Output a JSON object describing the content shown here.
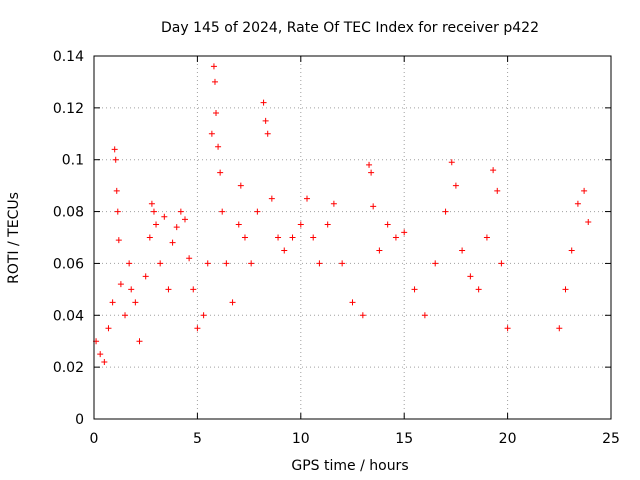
{
  "chart_data": {
    "type": "scatter",
    "title": "Day 145 of 2024, Rate Of TEC Index for receiver p422",
    "xlabel": "GPS time / hours",
    "ylabel": "ROTI / TECUs",
    "xlim": [
      0,
      25
    ],
    "ylim": [
      0,
      0.14
    ],
    "xticks": [
      0,
      5,
      10,
      15,
      20,
      25
    ],
    "xtick_labels": [
      "0",
      "5",
      "10",
      "15",
      "20",
      "25"
    ],
    "yticks": [
      0,
      0.02,
      0.04,
      0.06,
      0.08,
      0.1,
      0.12,
      0.14
    ],
    "ytick_labels": [
      "0",
      "0.02",
      "0.04",
      "0.06",
      "0.08",
      "0.1",
      "0.12",
      "0.14"
    ],
    "grid": true,
    "marker": "+",
    "marker_color": "#ff0000",
    "series": [
      {
        "name": "ROTI",
        "points": [
          [
            0.1,
            0.03
          ],
          [
            0.3,
            0.025
          ],
          [
            0.5,
            0.022
          ],
          [
            0.7,
            0.035
          ],
          [
            0.9,
            0.045
          ],
          [
            1.0,
            0.104
          ],
          [
            1.05,
            0.1
          ],
          [
            1.1,
            0.088
          ],
          [
            1.15,
            0.08
          ],
          [
            1.2,
            0.069
          ],
          [
            1.3,
            0.052
          ],
          [
            1.5,
            0.04
          ],
          [
            1.7,
            0.06
          ],
          [
            1.8,
            0.05
          ],
          [
            2.0,
            0.045
          ],
          [
            2.2,
            0.03
          ],
          [
            2.5,
            0.055
          ],
          [
            2.7,
            0.07
          ],
          [
            2.8,
            0.083
          ],
          [
            2.9,
            0.08
          ],
          [
            3.0,
            0.075
          ],
          [
            3.2,
            0.06
          ],
          [
            3.4,
            0.078
          ],
          [
            3.6,
            0.05
          ],
          [
            3.8,
            0.068
          ],
          [
            4.0,
            0.074
          ],
          [
            4.2,
            0.08
          ],
          [
            4.4,
            0.077
          ],
          [
            4.6,
            0.062
          ],
          [
            4.8,
            0.05
          ],
          [
            5.0,
            0.035
          ],
          [
            5.3,
            0.04
          ],
          [
            5.5,
            0.06
          ],
          [
            5.7,
            0.11
          ],
          [
            5.8,
            0.136
          ],
          [
            5.85,
            0.13
          ],
          [
            5.9,
            0.118
          ],
          [
            6.0,
            0.105
          ],
          [
            6.1,
            0.095
          ],
          [
            6.2,
            0.08
          ],
          [
            6.4,
            0.06
          ],
          [
            6.7,
            0.045
          ],
          [
            7.0,
            0.075
          ],
          [
            7.1,
            0.09
          ],
          [
            7.3,
            0.07
          ],
          [
            7.6,
            0.06
          ],
          [
            7.9,
            0.08
          ],
          [
            8.2,
            0.122
          ],
          [
            8.3,
            0.115
          ],
          [
            8.4,
            0.11
          ],
          [
            8.6,
            0.085
          ],
          [
            8.9,
            0.07
          ],
          [
            9.2,
            0.065
          ],
          [
            9.6,
            0.07
          ],
          [
            10.0,
            0.075
          ],
          [
            10.3,
            0.085
          ],
          [
            10.6,
            0.07
          ],
          [
            10.9,
            0.06
          ],
          [
            11.3,
            0.075
          ],
          [
            11.6,
            0.083
          ],
          [
            12.0,
            0.06
          ],
          [
            12.5,
            0.045
          ],
          [
            13.0,
            0.04
          ],
          [
            13.3,
            0.098
          ],
          [
            13.4,
            0.095
          ],
          [
            13.5,
            0.082
          ],
          [
            13.8,
            0.065
          ],
          [
            14.2,
            0.075
          ],
          [
            14.6,
            0.07
          ],
          [
            15.0,
            0.072
          ],
          [
            15.5,
            0.05
          ],
          [
            16.0,
            0.04
          ],
          [
            16.5,
            0.06
          ],
          [
            17.0,
            0.08
          ],
          [
            17.3,
            0.099
          ],
          [
            17.5,
            0.09
          ],
          [
            17.8,
            0.065
          ],
          [
            18.2,
            0.055
          ],
          [
            18.6,
            0.05
          ],
          [
            19.0,
            0.07
          ],
          [
            19.3,
            0.096
          ],
          [
            19.5,
            0.088
          ],
          [
            19.7,
            0.06
          ],
          [
            20.0,
            0.035
          ],
          [
            22.5,
            0.035
          ],
          [
            22.8,
            0.05
          ],
          [
            23.1,
            0.065
          ],
          [
            23.4,
            0.083
          ],
          [
            23.7,
            0.088
          ],
          [
            23.9,
            0.076
          ]
        ]
      }
    ]
  }
}
